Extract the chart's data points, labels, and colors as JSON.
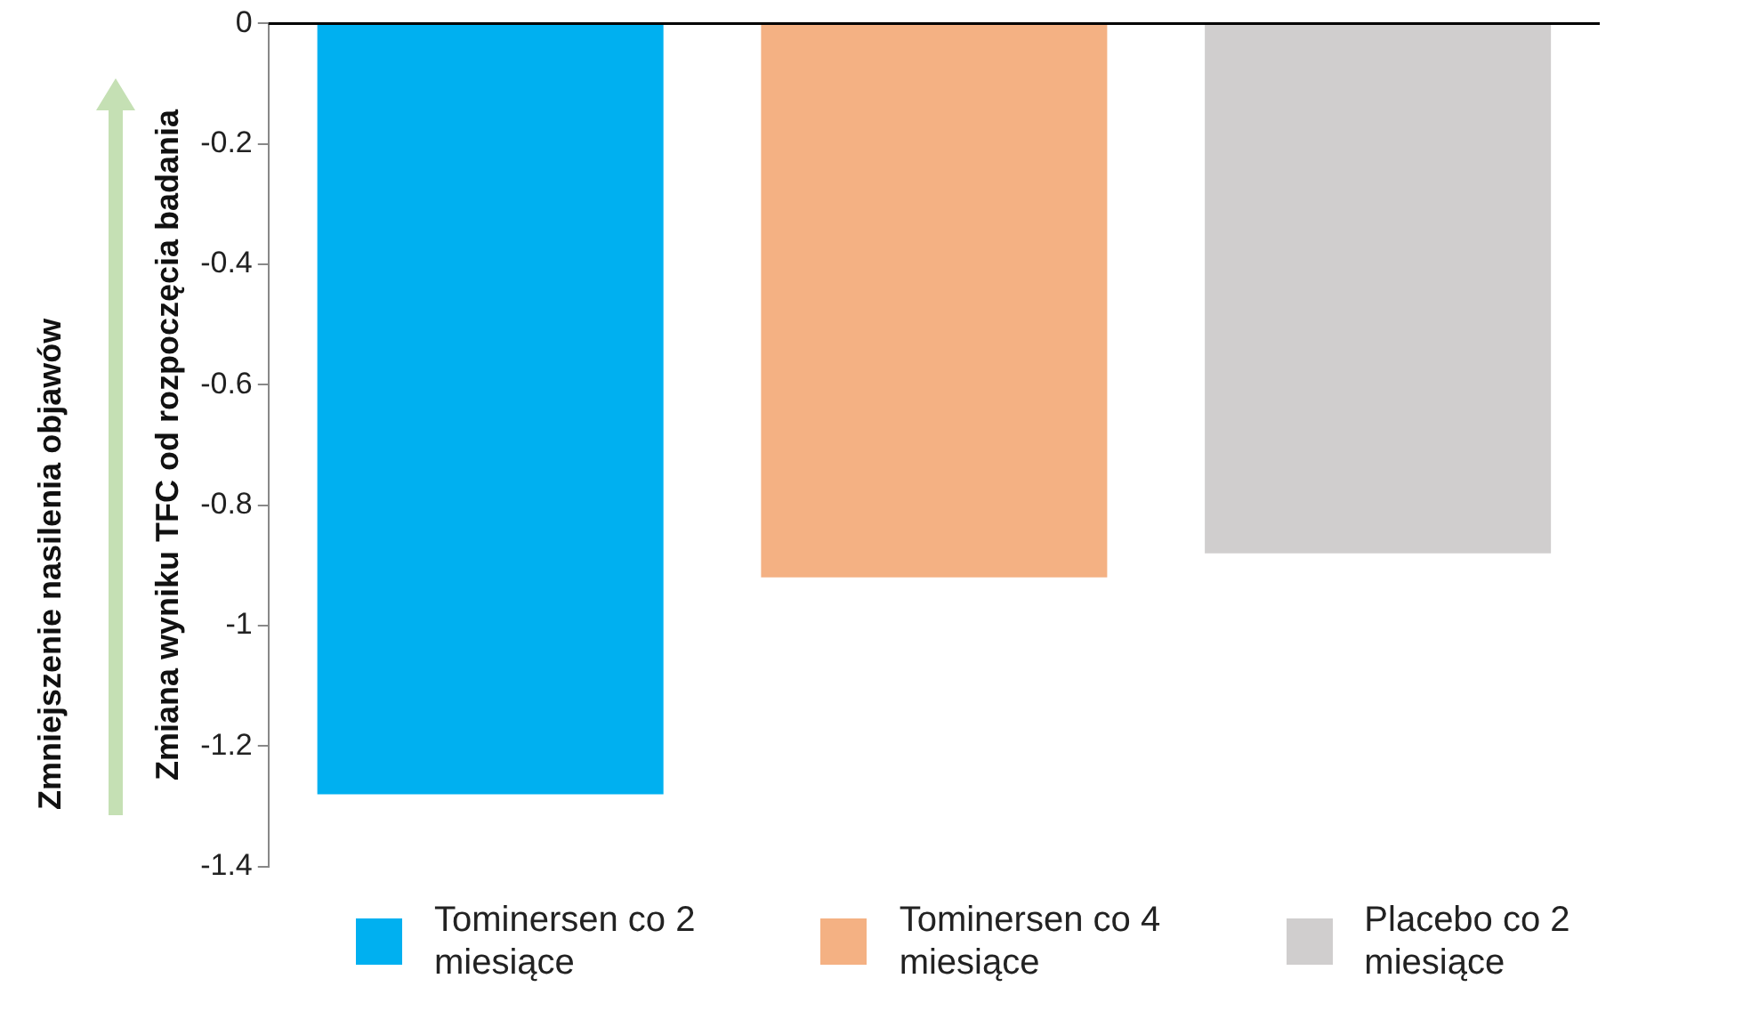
{
  "chart_data": {
    "type": "bar",
    "ylabel": "Zmiana wyniku TFC od rozpoczęcia badania",
    "categories": [
      null,
      null,
      null
    ],
    "series": [
      {
        "name": "Tominersen co 2 miesiące",
        "color": "#00b0f0",
        "values": [
          -1.28,
          null,
          null
        ]
      },
      {
        "name": "Tominersen co 4 miesiące",
        "color": "#f4b183",
        "values": [
          null,
          -0.92,
          null
        ]
      },
      {
        "name": "Placebo co 2 miesiące",
        "color": "#d0cece",
        "values": [
          null,
          null,
          -0.88
        ]
      }
    ],
    "ylim": [
      -1.4,
      0
    ],
    "yticks": [
      0,
      -0.2,
      -0.4,
      -0.6,
      -0.8,
      -1,
      -1.2,
      -1.4
    ],
    "grid": false,
    "legend": "bottom",
    "annotations": [
      "Zmniejszenie nasilenia objawów"
    ]
  }
}
